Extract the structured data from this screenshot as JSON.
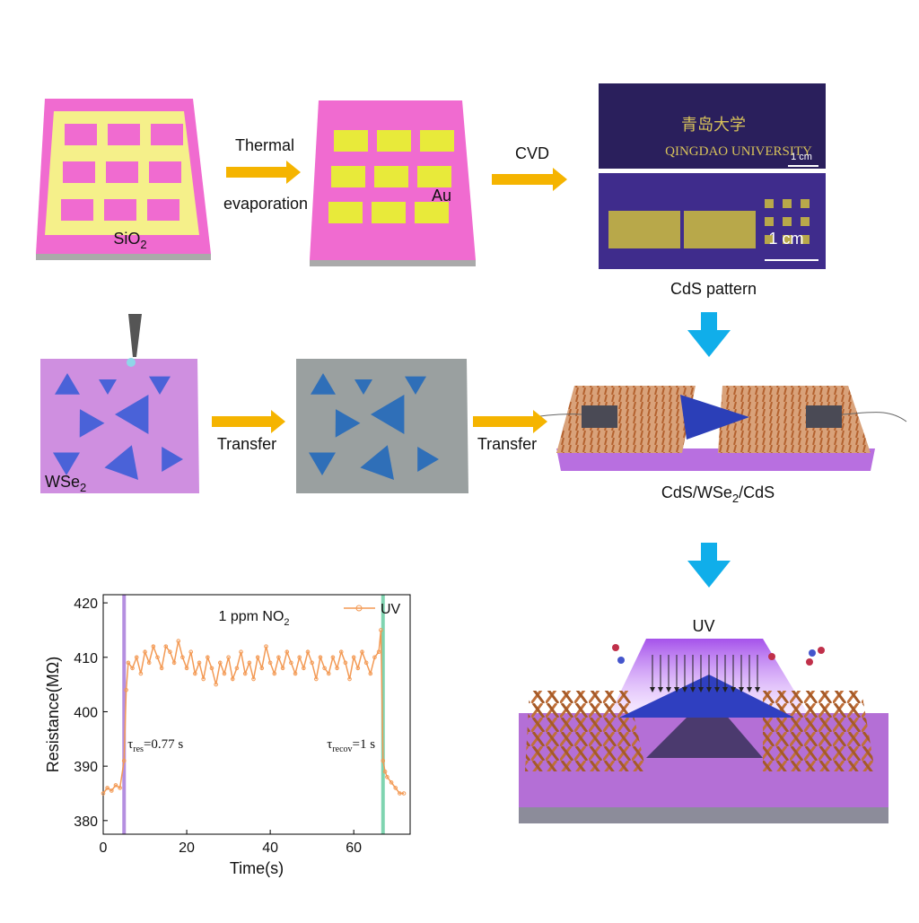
{
  "steps": {
    "sio2": {
      "base": "SiO",
      "sub": "2"
    },
    "thermal": "Thermal",
    "evaporation": "evaporation",
    "au": "Au",
    "cvd": "CVD",
    "photo": {
      "chinese": "青岛大学",
      "university": "QINGDAO UNIVERSITY",
      "scale_top": "1 cm",
      "scale_bottom": "1 cm"
    },
    "cds_pattern": "CdS pattern",
    "wse2": {
      "base": "WSe",
      "sub": "2"
    },
    "transfer_1": "Transfer",
    "transfer_2": "Transfer",
    "device": {
      "base": "CdS/WSe",
      "sub": "2",
      "tail": "/CdS"
    },
    "uv": "UV"
  },
  "chart_data": {
    "type": "line",
    "title": "1 ppm NO",
    "title_sub": "2",
    "x_label": "Time(s)",
    "y_label": "Resistance(MΩ)",
    "xlim": [
      0,
      73.5
    ],
    "xticks": [
      0,
      20,
      40,
      60
    ],
    "ylim": [
      377.5,
      421.5
    ],
    "yticks": [
      380,
      390,
      400,
      410,
      420
    ],
    "x": [
      0,
      1,
      2,
      3,
      4,
      5,
      5.5,
      6,
      7,
      8,
      9,
      10,
      11,
      12,
      13,
      14,
      15,
      16,
      17,
      18,
      19,
      20,
      21,
      22,
      23,
      24,
      25,
      26,
      27,
      28,
      29,
      30,
      31,
      32,
      33,
      34,
      35,
      36,
      37,
      38,
      39,
      40,
      41,
      42,
      43,
      44,
      45,
      46,
      47,
      48,
      49,
      50,
      51,
      52,
      53,
      54,
      55,
      56,
      57,
      58,
      59,
      60,
      61,
      62,
      63,
      64,
      65,
      66,
      66.5,
      67,
      67.5,
      68,
      69,
      70,
      71,
      72
    ],
    "series": [
      {
        "name": "UV",
        "color": "#f39a55",
        "values": [
          385,
          386,
          385.5,
          386.5,
          386,
          391,
          404,
          409,
          408,
          410,
          407,
          411,
          409,
          412,
          410,
          408,
          412,
          411,
          409,
          413,
          410,
          408,
          411,
          407,
          409,
          406,
          410,
          408,
          405,
          409,
          407,
          410,
          406,
          408,
          411,
          407,
          409,
          406,
          410,
          408,
          412,
          409,
          407,
          410,
          408,
          411,
          409,
          407,
          410,
          408,
          411,
          409,
          406,
          410,
          408,
          407,
          410,
          408,
          411,
          409,
          406,
          410,
          408,
          411,
          409,
          407,
          410,
          411,
          415,
          391,
          389,
          388,
          387,
          386,
          385,
          385
        ]
      }
    ],
    "bands": [
      {
        "x": 5,
        "color": "#b58fe0"
      },
      {
        "x": 67,
        "color": "#7fd4b0"
      }
    ],
    "annotations": [
      {
        "x": 5,
        "y": 390,
        "symbol": "τ",
        "sub": "res",
        "text": "=0.77 s"
      },
      {
        "x": 66,
        "y": 390,
        "symbol": "τ",
        "sub": "recov",
        "text": "=1 s"
      }
    ]
  }
}
